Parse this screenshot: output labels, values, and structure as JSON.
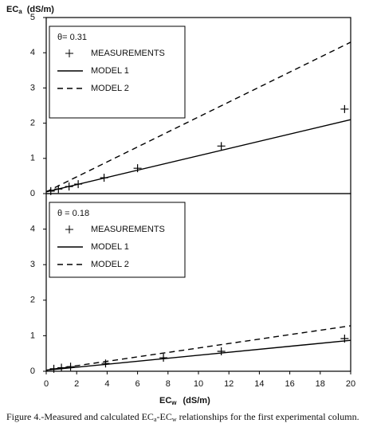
{
  "chart_data": [
    {
      "type": "line",
      "theta_label": "θ= 0.31",
      "legend": "upper left",
      "xlim": [
        0,
        20
      ],
      "ylim": [
        0,
        5
      ],
      "yticks": [
        0,
        1,
        2,
        3,
        4,
        5
      ],
      "series": [
        {
          "name": "MEASUREMENTS",
          "color": "#000000",
          "marker": "+",
          "x": [
            0.3,
            0.8,
            1.5,
            2.1,
            3.8,
            6.0,
            11.5,
            19.6
          ],
          "values": [
            0.07,
            0.13,
            0.2,
            0.27,
            0.45,
            0.72,
            1.35,
            2.4
          ]
        },
        {
          "name": "MODEL 1",
          "color": "#000000",
          "linestyle": "solid",
          "x": [
            0,
            20
          ],
          "values": [
            0.05,
            2.1
          ]
        },
        {
          "name": "MODEL 2",
          "color": "#000000",
          "linestyle": "dashed",
          "x": [
            0,
            20
          ],
          "values": [
            0.05,
            4.3
          ]
        }
      ]
    },
    {
      "type": "line",
      "theta_label": "θ = 0.18",
      "legend": "upper left",
      "xlim": [
        0,
        20
      ],
      "xticks": [
        0,
        2,
        4,
        6,
        8,
        10,
        12,
        14,
        16,
        18,
        20
      ],
      "ylim": [
        0,
        5
      ],
      "yticks": [
        0,
        1,
        2,
        3,
        4
      ],
      "series": [
        {
          "name": "MEASUREMENTS",
          "color": "#000000",
          "marker": "+",
          "x": [
            0.5,
            1.0,
            1.6,
            3.9,
            7.7,
            11.5,
            19.6
          ],
          "values": [
            0.07,
            0.1,
            0.13,
            0.22,
            0.38,
            0.56,
            0.92
          ]
        },
        {
          "name": "MODEL 1",
          "color": "#000000",
          "linestyle": "solid",
          "x": [
            0,
            20
          ],
          "values": [
            0.03,
            0.87
          ]
        },
        {
          "name": "MODEL 2",
          "color": "#000000",
          "linestyle": "dashed",
          "x": [
            0,
            20
          ],
          "values": [
            0.03,
            1.28
          ]
        }
      ]
    }
  ],
  "y_label": {
    "main": "EC",
    "sub": "a",
    "unit": "(dS/m)"
  },
  "x_label": {
    "main": "EC",
    "sub": "w",
    "unit": "(dS/m)"
  },
  "caption": {
    "a": "Figure 4.-Measured and calculated EC",
    "b": "a",
    "c": "-EC",
    "d": "w",
    "e": " relationships for the first experimental column."
  }
}
